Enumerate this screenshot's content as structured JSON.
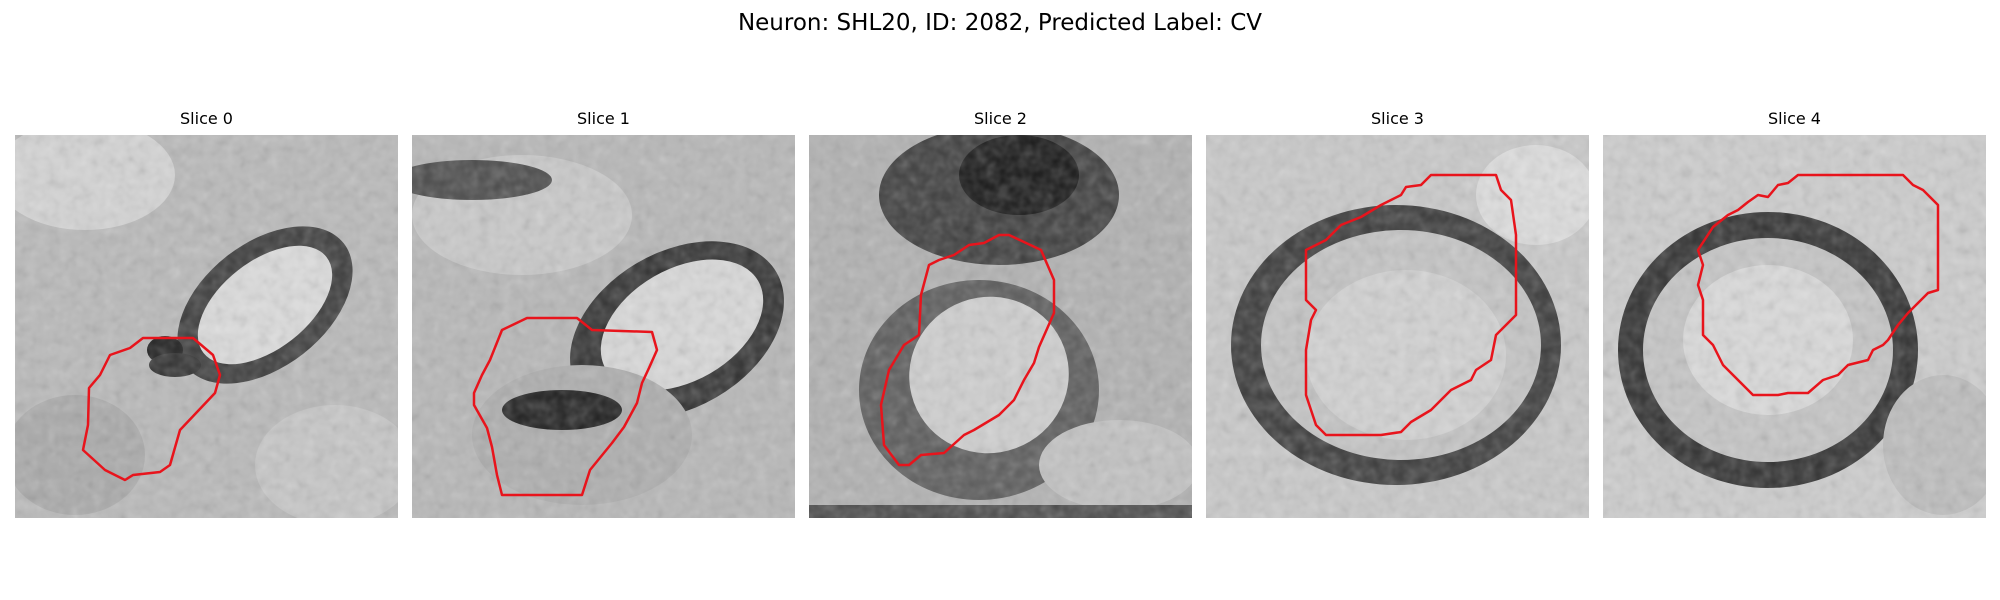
{
  "figure": {
    "title": "Neuron: SHL20, ID: 2082, Predicted Label: CV"
  },
  "colors": {
    "contour": "#e8141c",
    "background": "#ffffff"
  },
  "panels": [
    {
      "title": "Slice 0"
    },
    {
      "title": "Slice 1"
    },
    {
      "title": "Slice 2"
    },
    {
      "title": "Slice 3"
    },
    {
      "title": "Slice 4"
    }
  ]
}
